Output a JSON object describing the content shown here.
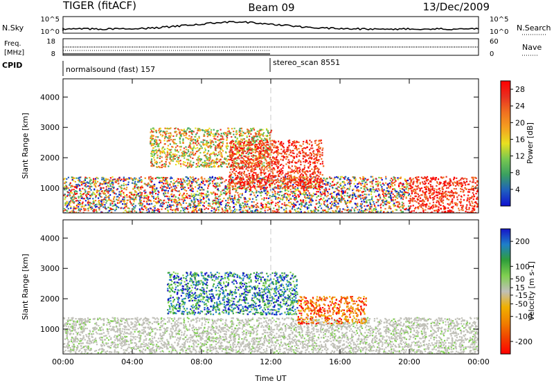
{
  "header": {
    "title": "TIGER (fitACF)",
    "beam": "Beam 09",
    "date": "13/Dec/2009"
  },
  "strip_labels": {
    "nsky": "N.Sky",
    "nsky_ticks": [
      "10^5",
      "10^0"
    ],
    "nsearch": "N.Search",
    "nsearch_ticks": [
      "10^5",
      "10^0"
    ],
    "freq_line1": "Freq.",
    "freq_line2": "[MHz]",
    "freq_ticks": [
      "18",
      "8"
    ],
    "nave": "Nave",
    "nave_ticks": [
      "60",
      "0"
    ],
    "cpid": "CPID"
  },
  "cpid_segments": [
    {
      "label": "normalsound (fast) 157",
      "start_hour": 0
    },
    {
      "label": "stereo_scan 8551",
      "start_hour": 12
    }
  ],
  "colors": {
    "power_scale": [
      "#1010d0",
      "#1f5fbf",
      "#3aa060",
      "#78c850",
      "#e8e020",
      "#f4a020",
      "#f07020",
      "#e83020",
      "#ff0000"
    ],
    "velocity_scale": [
      "#1515c8",
      "#1e7fc8",
      "#2f9e3a",
      "#80d050",
      "#c0c0b8",
      "#f0b000",
      "#f08000",
      "#f04000",
      "#ff0000"
    ]
  },
  "chart_data": [
    {
      "type": "heatmap",
      "title": "",
      "xlabel": "",
      "ylabel": "Slant Range [km]",
      "xlim": [
        "00:00",
        "00:00"
      ],
      "ylim": [
        180,
        4600
      ],
      "x_ticks": [
        "00:00",
        "04:00",
        "08:00",
        "12:00",
        "16:00",
        "20:00",
        "00:00"
      ],
      "y_ticks": [
        "1000",
        "2000",
        "3000",
        "4000"
      ],
      "colorbar": {
        "label": "Power [dB]",
        "ticks": [
          "4",
          "8",
          "12",
          "16",
          "20",
          "24",
          "28"
        ],
        "range": [
          0,
          30
        ]
      },
      "echo_regions": [
        {
          "t0": 0.0,
          "t1": 20.0,
          "r0": 180,
          "r1": 1400,
          "level": "mixed"
        },
        {
          "t0": 20.0,
          "t1": 24.0,
          "r0": 180,
          "r1": 1400,
          "level": "high"
        },
        {
          "t0": 5.0,
          "t1": 12.0,
          "r0": 1700,
          "r1": 3000,
          "level": "medium"
        },
        {
          "t0": 9.5,
          "t1": 15.0,
          "r0": 1000,
          "r1": 2600,
          "level": "high"
        }
      ]
    },
    {
      "type": "heatmap",
      "title": "",
      "xlabel": "Time UT",
      "ylabel": "Slant Range [km]",
      "xlim": [
        "00:00",
        "00:00"
      ],
      "ylim": [
        180,
        4600
      ],
      "x_ticks": [
        "00:00",
        "04:00",
        "08:00",
        "12:00",
        "16:00",
        "20:00",
        "00:00"
      ],
      "y_ticks": [
        "1000",
        "2000",
        "3000",
        "4000"
      ],
      "colorbar": {
        "label": "Velocity [m s-1]",
        "ticks": [
          "200",
          "100",
          "50",
          "15",
          "-15",
          "-50",
          "-100",
          "-200"
        ],
        "range": [
          -250,
          250
        ]
      },
      "echo_regions": [
        {
          "t0": 0.0,
          "t1": 24.0,
          "r0": 180,
          "r1": 1400,
          "level": "ground"
        },
        {
          "t0": 6.0,
          "t1": 13.5,
          "r0": 1500,
          "r1": 2900,
          "level": "positive"
        },
        {
          "t0": 13.5,
          "t1": 17.5,
          "r0": 1200,
          "r1": 2100,
          "level": "negative"
        }
      ]
    }
  ]
}
